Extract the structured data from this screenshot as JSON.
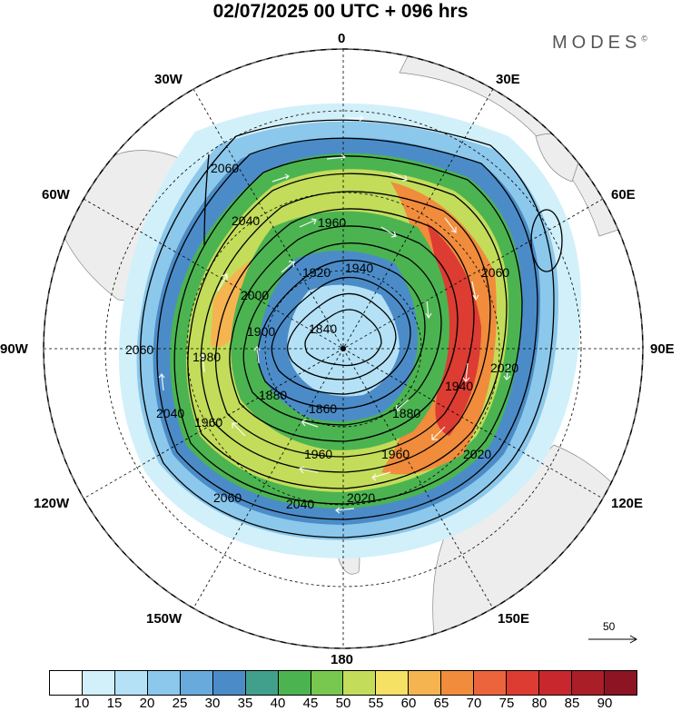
{
  "title": "02/07/2025  00 UTC  + 096 hrs",
  "brand": "MODES",
  "brand_mark": "©",
  "longitude_labels": {
    "lon_0": "0",
    "lon_30e": "30E",
    "lon_60e": "60E",
    "lon_90e": "90E",
    "lon_120e": "120E",
    "lon_150e": "150E",
    "lon_180": "180",
    "lon_150w": "150W",
    "lon_120w": "120W",
    "lon_90w": "90W",
    "lon_60w": "60W",
    "lon_30w": "30W"
  },
  "contour_labels": [
    "2060",
    "2040",
    "1960",
    "1920",
    "2000",
    "1840",
    "1900",
    "1980",
    "1880",
    "1860",
    "1960",
    "1940",
    "2020",
    "2060",
    "2060",
    "2040",
    "2020",
    "1960",
    "1960",
    "1880",
    "2060",
    "2040",
    "1940",
    "2020"
  ],
  "vector_reference": "50",
  "colorbar": {
    "ticks": [
      "10",
      "15",
      "20",
      "25",
      "30",
      "35",
      "40",
      "45",
      "50",
      "55",
      "60",
      "65",
      "70",
      "75",
      "80",
      "85",
      "90"
    ],
    "colors": [
      "#ffffff",
      "#d2f0fa",
      "#b4e1f5",
      "#8cc8eb",
      "#69aadc",
      "#4b8cc8",
      "#41a08c",
      "#4bb450",
      "#78c850",
      "#c3dc5a",
      "#f5e164",
      "#f5b450",
      "#f08c3c",
      "#eb643c",
      "#dc3c32",
      "#c8282d",
      "#aa1e28",
      "#8c1423"
    ]
  }
}
